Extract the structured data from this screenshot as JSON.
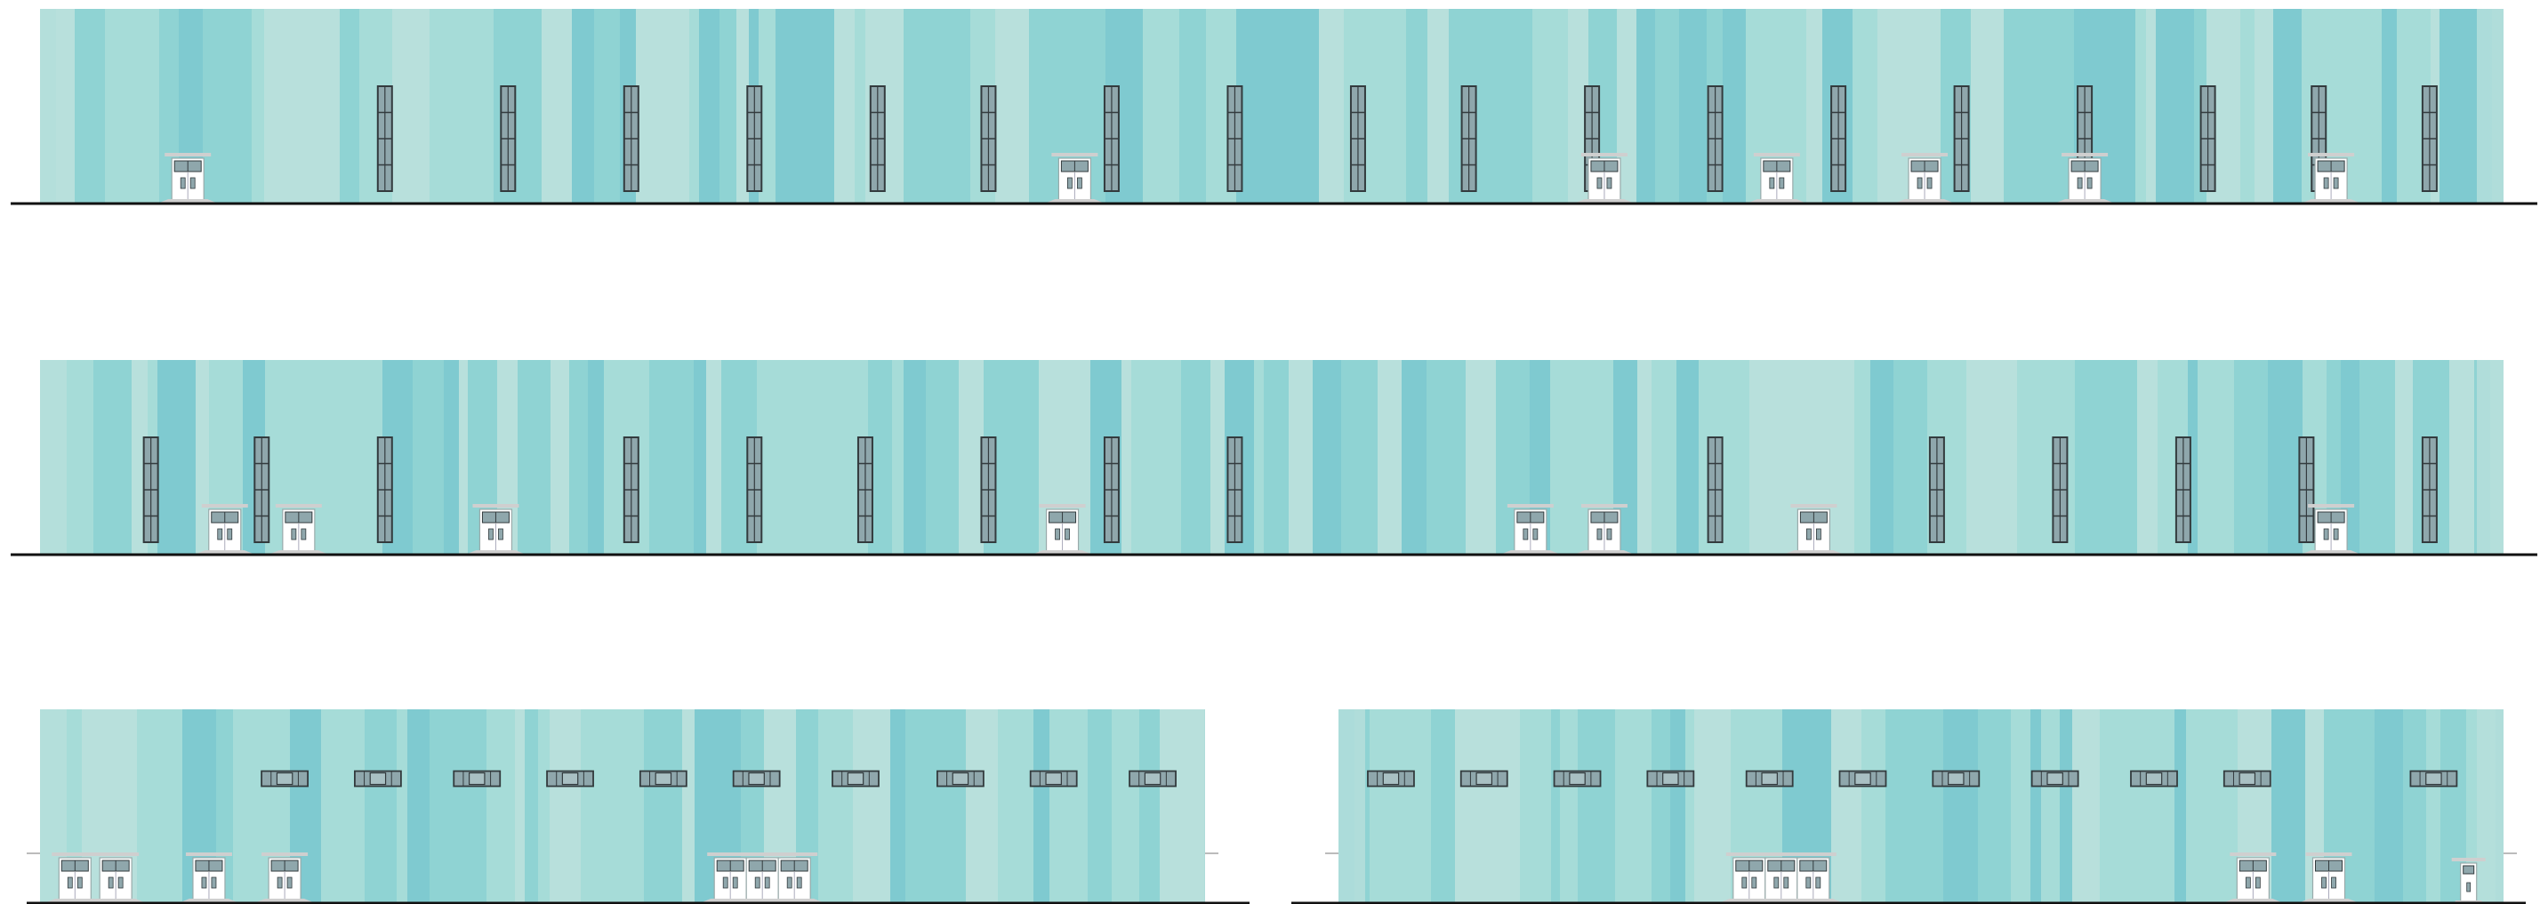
{
  "drawing": {
    "elevations": [
      {
        "id": "elevation-1",
        "stripe_seed": 11,
        "window_type": "tall",
        "windows": [
          14,
          19,
          24,
          29,
          34,
          38.5,
          43.5,
          48.5,
          53.5,
          58,
          63,
          68,
          73,
          78,
          83,
          88,
          92.5,
          97
        ],
        "doors": [
          {
            "pos": 6,
            "leaves": 1
          },
          {
            "pos": 42,
            "leaves": 1
          },
          {
            "pos": 63.5,
            "leaves": 1
          },
          {
            "pos": 70.5,
            "leaves": 1
          },
          {
            "pos": 76.5,
            "leaves": 1
          },
          {
            "pos": 83,
            "leaves": 1
          },
          {
            "pos": 93,
            "leaves": 1
          }
        ]
      },
      {
        "id": "elevation-2",
        "stripe_seed": 27,
        "window_type": "tall",
        "windows": [
          4.5,
          9,
          14,
          24,
          29,
          33.5,
          38.5,
          43.5,
          48.5,
          68,
          77,
          82,
          87,
          92,
          97
        ],
        "doors": [
          {
            "pos": 7.5,
            "leaves": 1
          },
          {
            "pos": 10.5,
            "leaves": 1
          },
          {
            "pos": 18.5,
            "leaves": 1
          },
          {
            "pos": 41.5,
            "leaves": 1
          },
          {
            "pos": 60.5,
            "leaves": 1
          },
          {
            "pos": 63.5,
            "leaves": 1
          },
          {
            "pos": 72,
            "leaves": 1
          },
          {
            "pos": 93,
            "leaves": 1
          }
        ]
      },
      {
        "id": "elevation-3",
        "stripe_seed": 43,
        "window_type": "ribbon",
        "windows": [
          21,
          29,
          37.5,
          45.5,
          53.5,
          61.5,
          70,
          79,
          87,
          95.5
        ],
        "doors": [
          {
            "pos": 3,
            "leaves": 1
          },
          {
            "pos": 6.5,
            "leaves": 1
          },
          {
            "pos": 14.5,
            "leaves": 1
          },
          {
            "pos": 21,
            "leaves": 1
          },
          {
            "pos": 62,
            "leaves": 3
          }
        ]
      },
      {
        "id": "elevation-4",
        "stripe_seed": 59,
        "window_type": "ribbon",
        "windows": [
          4.5,
          12.5,
          20.5,
          28.5,
          37,
          45,
          53,
          61.5,
          70,
          78,
          94
        ],
        "doors": [
          {
            "pos": 38,
            "leaves": 3
          },
          {
            "pos": 78.5,
            "leaves": 1
          },
          {
            "pos": 85,
            "leaves": 1
          },
          {
            "pos": 97,
            "leaves": 0
          }
        ]
      }
    ],
    "colors": {
      "background": "#ffffff",
      "wall_light": "#b8e0dc",
      "wall_mid": "#a6dcd8",
      "wall_strong": "#8fd3d3",
      "wall_deep": "#7fcad0",
      "glass": "#8fa7ac",
      "glass_light": "#a9c0c3",
      "frame": "#333b3e",
      "door": "#ffffff",
      "ground_line": "#111111",
      "platform": "#cfcfcf"
    }
  }
}
